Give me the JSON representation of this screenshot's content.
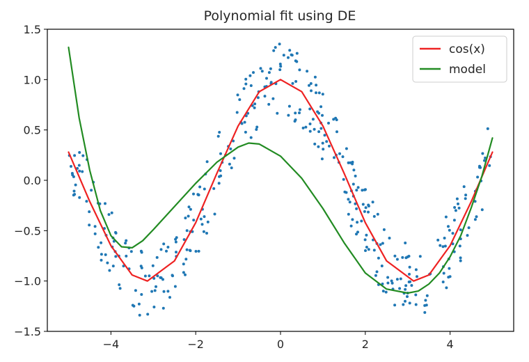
{
  "chart_data": {
    "type": "line",
    "title": "Polynomial fit using DE",
    "xlabel": "",
    "ylabel": "",
    "xlim": [
      -5.5,
      5.5
    ],
    "ylim": [
      -1.5,
      1.5
    ],
    "xticks": [
      -4,
      -2,
      0,
      2,
      4
    ],
    "xtick_labels": [
      "−4",
      "−2",
      "0",
      "2",
      "4"
    ],
    "yticks": [
      -1.5,
      -1.0,
      -0.5,
      0.0,
      0.5,
      1.0,
      1.5
    ],
    "ytick_labels": [
      "−1.5",
      "−1.0",
      "−0.5",
      "0.0",
      "0.5",
      "1.0",
      "1.5"
    ],
    "grid": false,
    "legend": {
      "placement": "top-right",
      "entries": [
        "cos(x)",
        "model"
      ]
    },
    "series": [
      {
        "name": "cos(x)",
        "color": "#ee2222",
        "x": [
          -5.0,
          -4.5,
          -4.0,
          -3.5,
          -3.14,
          -2.5,
          -2.0,
          -1.5,
          -1.0,
          -0.5,
          0.0,
          0.5,
          1.0,
          1.5,
          2.0,
          2.5,
          3.14,
          3.5,
          4.0,
          4.5,
          5.0
        ],
        "y": [
          0.28,
          -0.21,
          -0.65,
          -0.94,
          -1.0,
          -0.8,
          -0.42,
          0.07,
          0.54,
          0.88,
          1.0,
          0.88,
          0.54,
          0.07,
          -0.42,
          -0.8,
          -1.0,
          -0.94,
          -0.65,
          -0.21,
          0.28
        ]
      },
      {
        "name": "model",
        "color": "#228b22",
        "x": [
          -5.0,
          -4.75,
          -4.5,
          -4.25,
          -4.0,
          -3.75,
          -3.5,
          -3.25,
          -3.0,
          -2.5,
          -2.0,
          -1.5,
          -1.0,
          -0.75,
          -0.5,
          0.0,
          0.5,
          1.0,
          1.5,
          2.0,
          2.5,
          3.0,
          3.25,
          3.5,
          3.75,
          4.0,
          4.25,
          4.5,
          4.75,
          5.0
        ],
        "y": [
          1.32,
          0.62,
          0.1,
          -0.3,
          -0.55,
          -0.66,
          -0.67,
          -0.6,
          -0.49,
          -0.26,
          -0.03,
          0.18,
          0.33,
          0.37,
          0.36,
          0.24,
          0.02,
          -0.28,
          -0.62,
          -0.92,
          -1.08,
          -1.12,
          -1.1,
          -1.03,
          -0.92,
          -0.76,
          -0.55,
          -0.27,
          0.04,
          0.42
        ]
      }
    ],
    "scatter": {
      "name": "noisy samples",
      "color": "#1f77b4",
      "n": 400,
      "x_range": [
        -5.0,
        5.0
      ],
      "noise_amplitude": 0.36
    }
  }
}
